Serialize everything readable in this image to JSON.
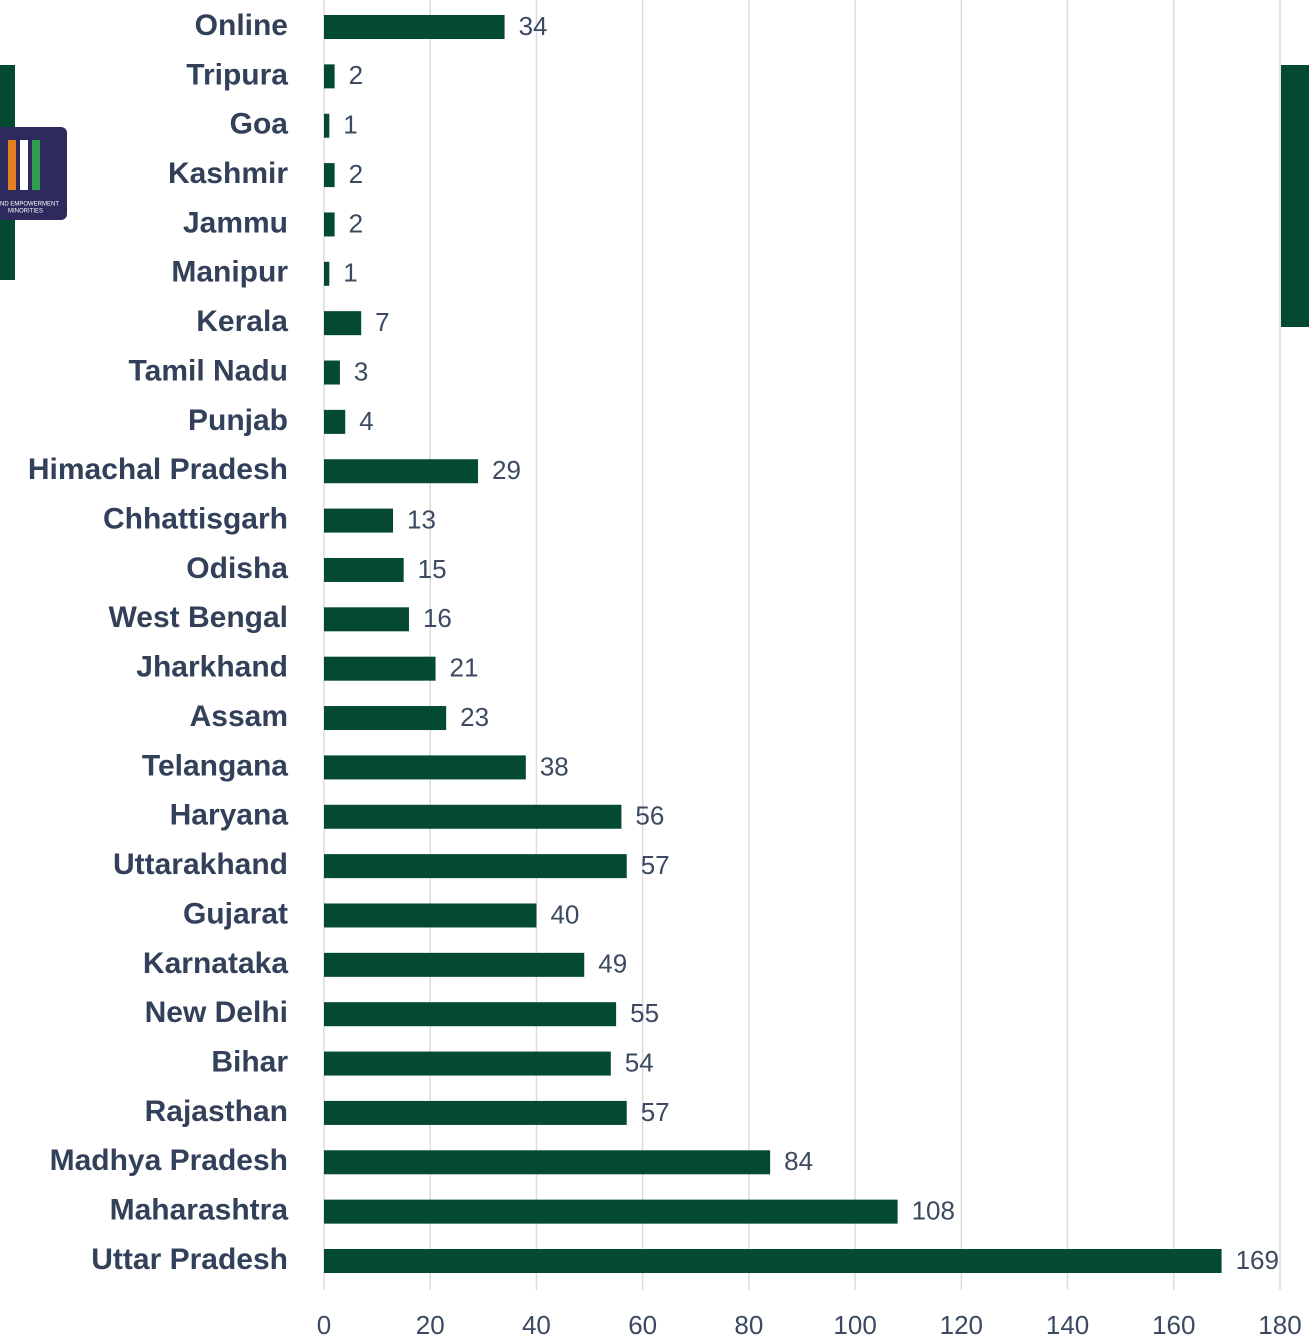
{
  "chart_data": {
    "type": "barh",
    "categories": [
      "Online",
      "Tripura",
      "Goa",
      "Kashmir",
      "Jammu",
      "Manipur",
      "Kerala",
      "Tamil Nadu",
      "Punjab",
      "Himachal Pradesh",
      "Chhattisgarh",
      "Odisha",
      "West Bengal",
      "Jharkhand",
      "Assam",
      "Telangana",
      "Haryana",
      "Uttarakhand",
      "Gujarat",
      "Karnataka",
      "New Delhi",
      "Bihar",
      "Rajasthan",
      "Madhya Pradesh",
      "Maharashtra",
      "Uttar Pradesh"
    ],
    "values": [
      34,
      2,
      1,
      2,
      2,
      1,
      7,
      3,
      4,
      29,
      13,
      15,
      16,
      21,
      23,
      38,
      56,
      57,
      40,
      49,
      55,
      54,
      57,
      84,
      108,
      169
    ],
    "color": "#034a30",
    "xlim": [
      0,
      180
    ],
    "xticks": [
      0,
      20,
      40,
      60,
      80,
      100,
      120,
      140,
      160,
      180
    ],
    "grid": true
  },
  "logo": {
    "lines": [
      "ND EMPOWERMENT",
      "MINORITIES"
    ]
  }
}
